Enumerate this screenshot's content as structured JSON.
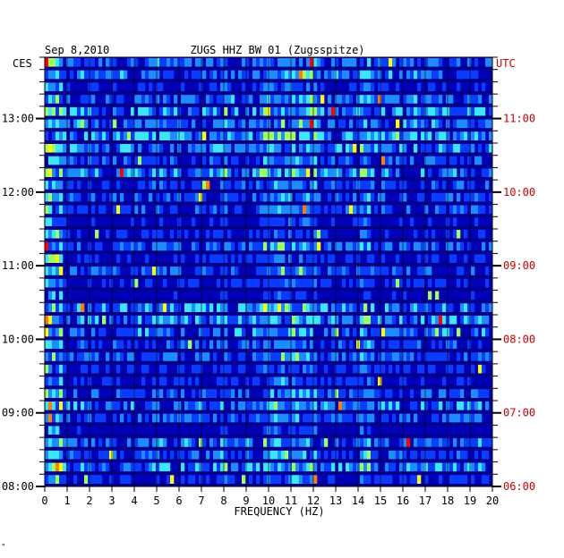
{
  "chart_data": {
    "type": "heatmap",
    "date": "Sep 8,2010",
    "title": "ZUGS HHZ BW 01 (Zugsspitze)",
    "xlabel": "FREQUENCY (HZ)",
    "xlim": [
      0,
      20
    ],
    "x_ticks": [
      "0",
      "1",
      "2",
      "3",
      "4",
      "5",
      "6",
      "7",
      "8",
      "9",
      "10",
      "11",
      "12",
      "13",
      "14",
      "15",
      "16",
      "17",
      "18",
      "19",
      "20"
    ],
    "left_timezone": "CES",
    "right_timezone": "UTC",
    "left_time_ticks": [
      "13:00",
      "12:00",
      "11:00",
      "10:00",
      "09:00",
      "08:00"
    ],
    "right_time_ticks": [
      "11:00",
      "10:00",
      "09:00",
      "08:00",
      "07:00",
      "06:00"
    ],
    "left_time_range": [
      "08:00",
      "13:50"
    ],
    "colormap": [
      "#00007a",
      "#0000c8",
      "#0a3cff",
      "#1e8cff",
      "#3ce6ff",
      "#a0ff60",
      "#ffff00",
      "#ff8000",
      "#ff0000"
    ],
    "footnote": "\""
  }
}
